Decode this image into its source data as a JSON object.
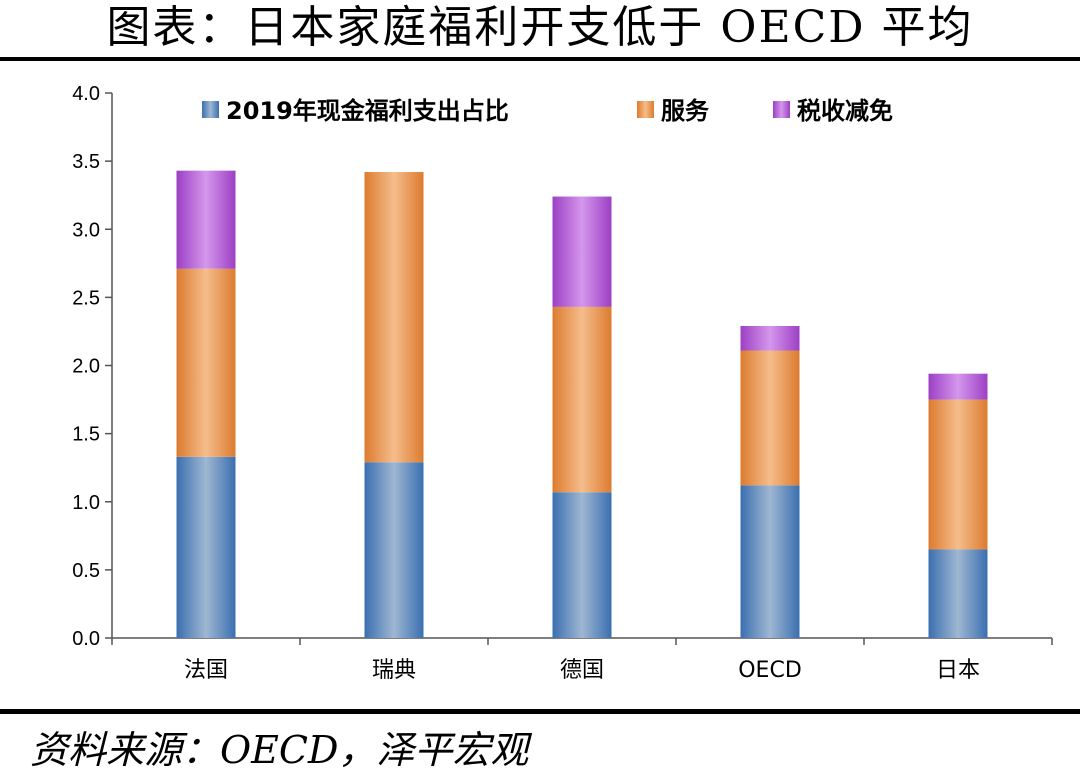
{
  "header": {
    "title": "图表：日本家庭福利开支低于 OECD 平均"
  },
  "footer": {
    "source": "资料来源：OECD，泽平宏观"
  },
  "chart_data": {
    "type": "bar",
    "stacked": true,
    "categories": [
      "法国",
      "瑞典",
      "德国",
      "OECD",
      "日本"
    ],
    "series": [
      {
        "name": "2019年现金福利支出占比",
        "values": [
          1.33,
          1.29,
          1.07,
          1.12,
          0.65
        ],
        "color": "#4f81bd"
      },
      {
        "name": "服务",
        "values": [
          1.38,
          2.13,
          1.36,
          0.99,
          1.1
        ],
        "color": "#f0a868"
      },
      {
        "name": "税收减免",
        "values": [
          0.72,
          0.0,
          0.81,
          0.18,
          0.19
        ],
        "color": "#b866d6"
      }
    ],
    "ylim": [
      0,
      4.0
    ],
    "yticks": [
      "0.0",
      "0.5",
      "1.0",
      "1.5",
      "2.0",
      "2.5",
      "3.0",
      "3.5",
      "4.0"
    ],
    "grid": false,
    "legend_position": "top"
  }
}
